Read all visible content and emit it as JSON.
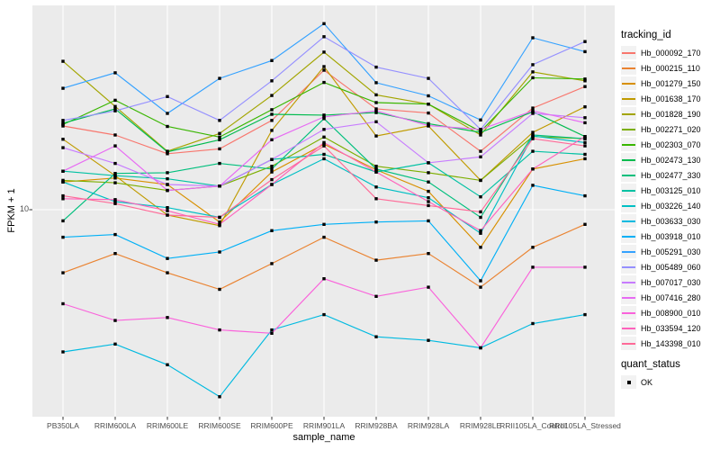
{
  "axes": {
    "y_label": "FPKM + 1",
    "x_label": "sample_name",
    "y_tick_label": "10"
  },
  "legend": {
    "tracking_title": "tracking_id",
    "quant_title": "quant_status",
    "quant_ok_label": "OK"
  },
  "chart_data": {
    "type": "line",
    "title": "",
    "xlabel": "sample_name",
    "ylabel": "FPKM + 1",
    "yscale": "log10",
    "yticks": [
      10
    ],
    "ylim": [
      1.4,
      69
    ],
    "grid": true,
    "legend_position": "right",
    "point_shape": "square",
    "point_color": "#000000",
    "panel_background": "#EBEBEB",
    "categories": [
      "PB350LA",
      "RRIM600LA",
      "RRIM600LE",
      "RRIM600SE",
      "RRIM600PE",
      "RRIM901LA",
      "RRIM928BA",
      "RRIM928LA",
      "RRIM928LE",
      "RRII105LA_Control",
      "RRII105LA_Stressed"
    ],
    "series": [
      {
        "name": "Hb_000092_170",
        "color": "#F8766D",
        "values": [
          22.1,
          20.3,
          17.0,
          17.8,
          23.3,
          37.5,
          26.0,
          25.0,
          17.4,
          26.2,
          32.1
        ]
      },
      {
        "name": "Hb_000215_110",
        "color": "#EA8331",
        "values": [
          5.5,
          6.6,
          5.5,
          4.7,
          6.0,
          7.7,
          6.2,
          6.6,
          4.8,
          7.0,
          8.7
        ]
      },
      {
        "name": "Hb_001279_150",
        "color": "#D89000",
        "values": [
          13.0,
          13.5,
          12.7,
          8.9,
          14.3,
          18.6,
          14.6,
          11.9,
          7.0,
          14.7,
          16.2
        ]
      },
      {
        "name": "Hb_001638_170",
        "color": "#C09B00",
        "values": [
          19.5,
          13.8,
          9.5,
          8.6,
          21.2,
          38.8,
          20.1,
          22.1,
          13.2,
          20.8,
          26.5
        ]
      },
      {
        "name": "Hb_001828_190",
        "color": "#A3A500",
        "values": [
          40.8,
          26.6,
          17.4,
          20.6,
          29.5,
          44.5,
          29.7,
          27.2,
          20.3,
          36.9,
          33.9
        ]
      },
      {
        "name": "Hb_002271_020",
        "color": "#7CAE00",
        "values": [
          13.2,
          12.9,
          12.0,
          12.5,
          15.1,
          19.9,
          15.1,
          14.2,
          13.2,
          20.0,
          19.6
        ]
      },
      {
        "name": "Hb_002303_070",
        "color": "#39B600",
        "values": [
          22.4,
          28.2,
          22.0,
          19.9,
          25.8,
          33.4,
          27.6,
          27.2,
          21.0,
          34.9,
          34.5
        ]
      },
      {
        "name": "Hb_002473_130",
        "color": "#00BB4E",
        "values": [
          22.7,
          26.0,
          17.3,
          19.4,
          24.7,
          24.5,
          25.1,
          22.6,
          20.8,
          25.3,
          20.0
        ]
      },
      {
        "name": "Hb_002477_330",
        "color": "#00BF7D",
        "values": [
          9.0,
          14.1,
          14.2,
          15.5,
          14.7,
          23.7,
          14.7,
          13.0,
          9.3,
          20.3,
          19.6
        ]
      },
      {
        "name": "Hb_003125_010",
        "color": "#00C1A3",
        "values": [
          14.4,
          13.8,
          13.4,
          12.5,
          16.1,
          16.9,
          14.3,
          15.6,
          11.3,
          17.4,
          16.9
        ]
      },
      {
        "name": "Hb_003226_140",
        "color": "#00BFC4",
        "values": [
          13.0,
          10.8,
          10.2,
          9.3,
          12.7,
          16.2,
          12.4,
          11.2,
          8.0,
          20.1,
          18.9
        ]
      },
      {
        "name": "Hb_003633_030",
        "color": "#00BAE0",
        "values": [
          2.6,
          2.8,
          2.3,
          1.7,
          3.2,
          3.7,
          3.0,
          2.9,
          2.7,
          3.4,
          3.7
        ]
      },
      {
        "name": "Hb_003918_010",
        "color": "#00B0F6",
        "values": [
          7.7,
          7.9,
          6.3,
          6.7,
          8.2,
          8.7,
          8.9,
          9.0,
          5.1,
          12.6,
          11.4
        ]
      },
      {
        "name": "Hb_005291_030",
        "color": "#35A2FF",
        "values": [
          31.6,
          36.6,
          24.9,
          34.7,
          41.1,
          58.3,
          33.3,
          29.4,
          23.4,
          51.0,
          44.7
        ]
      },
      {
        "name": "Hb_005489_060",
        "color": "#9590FF",
        "values": [
          23.3,
          25.5,
          29.2,
          23.3,
          33.9,
          51.5,
          38.6,
          34.7,
          21.4,
          39.5,
          49.2
        ]
      },
      {
        "name": "Hb_007017_030",
        "color": "#C77CFF",
        "values": [
          18.0,
          15.5,
          12.7,
          12.5,
          16.1,
          21.4,
          23.0,
          15.6,
          16.5,
          24.9,
          23.9
        ]
      },
      {
        "name": "Hb_007416_280",
        "color": "#E76BF3",
        "values": [
          14.4,
          18.3,
          12.0,
          12.5,
          19.4,
          24.1,
          25.5,
          22.2,
          21.4,
          25.5,
          22.8
        ]
      },
      {
        "name": "Hb_008900_010",
        "color": "#FA62DB",
        "values": [
          4.1,
          3.5,
          3.6,
          3.2,
          3.1,
          5.2,
          4.4,
          4.8,
          2.7,
          5.8,
          5.8
        ]
      },
      {
        "name": "Hb_033594_120",
        "color": "#FF62BC",
        "values": [
          11.1,
          11.0,
          9.9,
          8.7,
          12.7,
          18.9,
          14.3,
          10.8,
          8.2,
          14.7,
          20.0
        ]
      },
      {
        "name": "Hb_143398_010",
        "color": "#FF6A98",
        "values": [
          11.4,
          10.6,
          9.5,
          9.3,
          13.3,
          18.3,
          11.1,
          10.4,
          9.8,
          19.6,
          18.3
        ]
      }
    ],
    "quant_status_legend": [
      {
        "label": "OK",
        "marker": "black-square"
      }
    ]
  }
}
